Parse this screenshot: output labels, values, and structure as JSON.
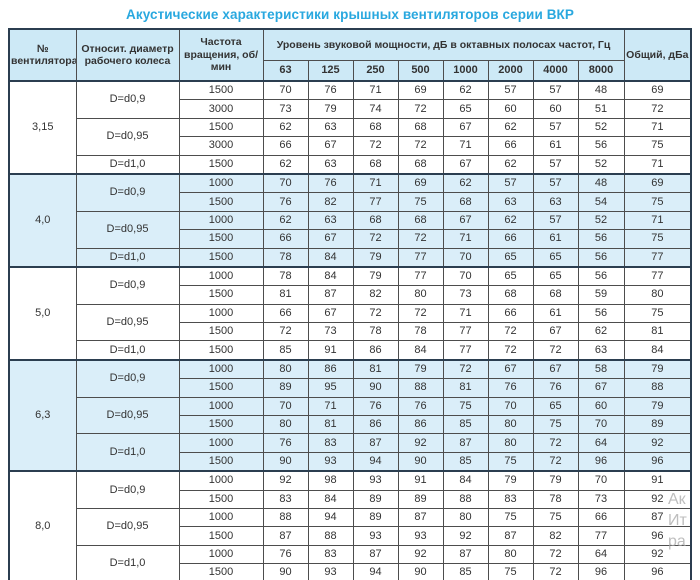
{
  "title": "Акустические характеристики крышных вентиляторов серии ВКР",
  "colors": {
    "title_color": "#29a8df",
    "header_bg": "#cde9f6",
    "stripe_bg": "#daeef9",
    "border_dark": "#2b3e50",
    "border_thin": "#4d4d4d"
  },
  "watermark": {
    "lines": [
      "Ак",
      "Ит",
      "ра"
    ]
  },
  "table": {
    "headers": {
      "fan_number": "№ вентилятора",
      "rel_diameter": "Относит. диаметр рабочего колеса",
      "speed": "Частота вращения, об/мин",
      "spl_group": "Уровень звуковой мощности, дБ в октавных полосах частот, Гц",
      "freq_bands": [
        "63",
        "125",
        "250",
        "500",
        "1000",
        "2000",
        "4000",
        "8000"
      ],
      "total": "Общий, дБа"
    },
    "groups": [
      {
        "fan": "3,15",
        "shaded": false,
        "diameters": [
          {
            "label": "D=d0,9",
            "rows": [
              {
                "speed": "1500",
                "levels": [
                  70,
                  76,
                  71,
                  69,
                  62,
                  57,
                  57,
                  48
                ],
                "total": 69
              },
              {
                "speed": "3000",
                "levels": [
                  73,
                  79,
                  74,
                  72,
                  65,
                  60,
                  60,
                  51
                ],
                "total": 72
              }
            ]
          },
          {
            "label": "D=d0,95",
            "rows": [
              {
                "speed": "1500",
                "levels": [
                  62,
                  63,
                  68,
                  68,
                  67,
                  62,
                  57,
                  52
                ],
                "total": 71
              },
              {
                "speed": "3000",
                "levels": [
                  66,
                  67,
                  72,
                  72,
                  71,
                  66,
                  61,
                  56
                ],
                "total": 75
              }
            ]
          },
          {
            "label": "D=d1,0",
            "rows": [
              {
                "speed": "1500",
                "levels": [
                  62,
                  63,
                  68,
                  68,
                  67,
                  62,
                  57,
                  52
                ],
                "total": 71
              }
            ]
          }
        ]
      },
      {
        "fan": "4,0",
        "shaded": true,
        "diameters": [
          {
            "label": "D=d0,9",
            "rows": [
              {
                "speed": "1000",
                "levels": [
                  70,
                  76,
                  71,
                  69,
                  62,
                  57,
                  57,
                  48
                ],
                "total": 69
              },
              {
                "speed": "1500",
                "levels": [
                  76,
                  82,
                  77,
                  75,
                  68,
                  63,
                  63,
                  54
                ],
                "total": 75
              }
            ]
          },
          {
            "label": "D=d0,95",
            "rows": [
              {
                "speed": "1000",
                "levels": [
                  62,
                  63,
                  68,
                  68,
                  67,
                  62,
                  57,
                  52
                ],
                "total": 71
              },
              {
                "speed": "1500",
                "levels": [
                  66,
                  67,
                  72,
                  72,
                  71,
                  66,
                  61,
                  56
                ],
                "total": 75
              }
            ]
          },
          {
            "label": "D=d1,0",
            "rows": [
              {
                "speed": "1500",
                "levels": [
                  78,
                  84,
                  79,
                  77,
                  70,
                  65,
                  65,
                  56
                ],
                "total": 77
              }
            ]
          }
        ]
      },
      {
        "fan": "5,0",
        "shaded": false,
        "diameters": [
          {
            "label": "D=d0,9",
            "rows": [
              {
                "speed": "1000",
                "levels": [
                  78,
                  84,
                  79,
                  77,
                  70,
                  65,
                  65,
                  56
                ],
                "total": 77
              },
              {
                "speed": "1500",
                "levels": [
                  81,
                  87,
                  82,
                  80,
                  73,
                  68,
                  68,
                  59
                ],
                "total": 80
              }
            ]
          },
          {
            "label": "D=d0,95",
            "rows": [
              {
                "speed": "1000",
                "levels": [
                  66,
                  67,
                  72,
                  72,
                  71,
                  66,
                  61,
                  56
                ],
                "total": 75
              },
              {
                "speed": "1500",
                "levels": [
                  72,
                  73,
                  78,
                  78,
                  77,
                  72,
                  67,
                  62
                ],
                "total": 81
              }
            ]
          },
          {
            "label": "D=d1,0",
            "rows": [
              {
                "speed": "1500",
                "levels": [
                  85,
                  91,
                  86,
                  84,
                  77,
                  72,
                  72,
                  63
                ],
                "total": 84
              }
            ]
          }
        ]
      },
      {
        "fan": "6,3",
        "shaded": true,
        "diameters": [
          {
            "label": "D=d0,9",
            "rows": [
              {
                "speed": "1000",
                "levels": [
                  80,
                  86,
                  81,
                  79,
                  72,
                  67,
                  67,
                  58
                ],
                "total": 79
              },
              {
                "speed": "1500",
                "levels": [
                  89,
                  95,
                  90,
                  88,
                  81,
                  76,
                  76,
                  67
                ],
                "total": 88
              }
            ]
          },
          {
            "label": "D=d0,95",
            "rows": [
              {
                "speed": "1000",
                "levels": [
                  70,
                  71,
                  76,
                  76,
                  75,
                  70,
                  65,
                  60
                ],
                "total": 79
              },
              {
                "speed": "1500",
                "levels": [
                  80,
                  81,
                  86,
                  86,
                  85,
                  80,
                  75,
                  70
                ],
                "total": 89
              }
            ]
          },
          {
            "label": "D=d1,0",
            "rows": [
              {
                "speed": "1000",
                "levels": [
                  76,
                  83,
                  87,
                  92,
                  87,
                  80,
                  72,
                  64
                ],
                "total": 92
              },
              {
                "speed": "1500",
                "levels": [
                  90,
                  93,
                  94,
                  90,
                  85,
                  75,
                  72,
                  96
                ],
                "total": 96
              }
            ]
          }
        ]
      },
      {
        "fan": "8,0",
        "shaded": false,
        "diameters": [
          {
            "label": "D=d0,9",
            "rows": [
              {
                "speed": "1000",
                "levels": [
                  92,
                  98,
                  93,
                  91,
                  84,
                  79,
                  79,
                  70
                ],
                "total": 91
              },
              {
                "speed": "1500",
                "levels": [
                  83,
                  84,
                  89,
                  89,
                  88,
                  83,
                  78,
                  73
                ],
                "total": 92
              }
            ]
          },
          {
            "label": "D=d0,95",
            "rows": [
              {
                "speed": "1000",
                "levels": [
                  88,
                  94,
                  89,
                  87,
                  80,
                  75,
                  75,
                  66
                ],
                "total": 87
              },
              {
                "speed": "1500",
                "levels": [
                  87,
                  88,
                  93,
                  93,
                  92,
                  87,
                  82,
                  77
                ],
                "total": 96
              }
            ]
          },
          {
            "label": "D=d1,0",
            "rows": [
              {
                "speed": "1000",
                "levels": [
                  76,
                  83,
                  87,
                  92,
                  87,
                  80,
                  72,
                  64
                ],
                "total": 92
              },
              {
                "speed": "1500",
                "levels": [
                  90,
                  93,
                  94,
                  90,
                  85,
                  75,
                  72,
                  96
                ],
                "total": 96
              }
            ]
          }
        ]
      }
    ]
  }
}
